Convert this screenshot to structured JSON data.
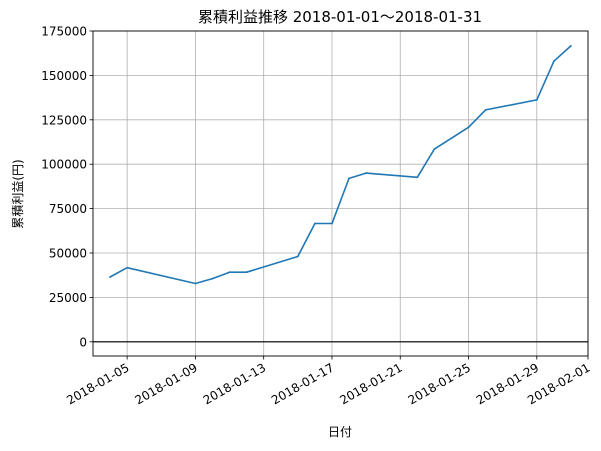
{
  "chart_data": {
    "type": "line",
    "title": "累積利益推移  2018-01-01～2018-01-31",
    "xlabel": "日付",
    "ylabel": "累積利益(円)",
    "x_ticks": [
      "2018-01-05",
      "2018-01-09",
      "2018-01-13",
      "2018-01-17",
      "2018-01-21",
      "2018-01-25",
      "2018-01-29",
      "2018-02-01"
    ],
    "y_ticks": [
      0,
      25000,
      50000,
      75000,
      100000,
      125000,
      150000,
      175000
    ],
    "y_tick_labels": [
      "0",
      "25000",
      "50000",
      "75000",
      "100000",
      "125000",
      "150000",
      "175000"
    ],
    "xlim": [
      "2018-01-03",
      "2018-02-01"
    ],
    "ylim": [
      -8000,
      175000
    ],
    "grid": true,
    "zero_line": true,
    "series": [
      {
        "color": "#1f77b4",
        "points": [
          {
            "x": "2018-01-04",
            "y": 36500
          },
          {
            "x": "2018-01-05",
            "y": 41700
          },
          {
            "x": "2018-01-09",
            "y": 32800
          },
          {
            "x": "2018-01-10",
            "y": 35600
          },
          {
            "x": "2018-01-11",
            "y": 39200
          },
          {
            "x": "2018-01-12",
            "y": 39200
          },
          {
            "x": "2018-01-15",
            "y": 48000
          },
          {
            "x": "2018-01-16",
            "y": 66600
          },
          {
            "x": "2018-01-17",
            "y": 66600
          },
          {
            "x": "2018-01-18",
            "y": 92000
          },
          {
            "x": "2018-01-19",
            "y": 95000
          },
          {
            "x": "2018-01-22",
            "y": 92600
          },
          {
            "x": "2018-01-23",
            "y": 108500
          },
          {
            "x": "2018-01-25",
            "y": 120800
          },
          {
            "x": "2018-01-26",
            "y": 130600
          },
          {
            "x": "2018-01-29",
            "y": 136200
          },
          {
            "x": "2018-01-30",
            "y": 158000
          },
          {
            "x": "2018-01-31",
            "y": 166600
          }
        ]
      }
    ]
  }
}
